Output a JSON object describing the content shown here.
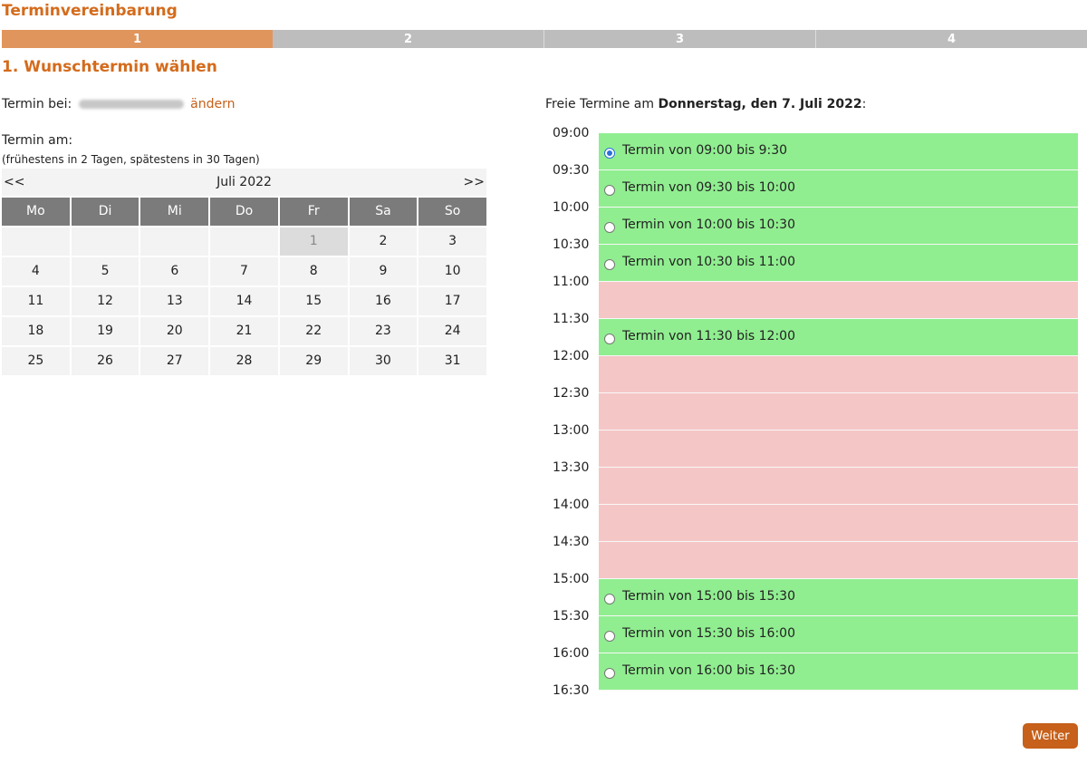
{
  "page": {
    "title": "Terminvereinbarung",
    "heading": "1. Wunschtermin wählen"
  },
  "steps": [
    {
      "label": "1",
      "active": true
    },
    {
      "label": "2"
    },
    {
      "label": "3"
    },
    {
      "label": "4"
    }
  ],
  "termin_bei": {
    "label": "Termin bei:",
    "change_link": "ändern"
  },
  "termin_am": {
    "label": "Termin am:",
    "hint": "(frühestens in 2 Tagen, spätestens in 30 Tagen)"
  },
  "calendar": {
    "prev": "<<",
    "next": ">>",
    "month": "Juli 2022",
    "weekdays": [
      "Mo",
      "Di",
      "Mi",
      "Do",
      "Fr",
      "Sa",
      "So"
    ],
    "leading_blanks": 4,
    "days": [
      "1",
      "2",
      "3",
      "4",
      "5",
      "6",
      "7",
      "8",
      "9",
      "10",
      "11",
      "12",
      "13",
      "14",
      "15",
      "16",
      "17",
      "18",
      "19",
      "20",
      "21",
      "22",
      "23",
      "24",
      "25",
      "26",
      "27",
      "28",
      "29",
      "30",
      "31"
    ],
    "selected_day": "1"
  },
  "schedule": {
    "title_prefix": "Freie Termine am ",
    "date": "Donnerstag, den 7. Juli 2022",
    "title_suffix": ":",
    "times": [
      "09:00",
      "09:30",
      "10:00",
      "10:30",
      "11:00",
      "11:30",
      "12:00",
      "12:30",
      "13:00",
      "13:30",
      "14:00",
      "14:30",
      "15:00",
      "15:30",
      "16:00",
      "16:30"
    ],
    "slots": [
      {
        "status": "free",
        "label": "Termin von 09:00 bis 9:30",
        "checked": true
      },
      {
        "status": "free",
        "label": "Termin von 09:30 bis 10:00"
      },
      {
        "status": "free",
        "label": "Termin von 10:00 bis 10:30"
      },
      {
        "status": "free",
        "label": "Termin von 10:30 bis 11:00"
      },
      {
        "status": "taken"
      },
      {
        "status": "free",
        "label": "Termin von 11:30 bis 12:00"
      },
      {
        "status": "taken"
      },
      {
        "status": "taken"
      },
      {
        "status": "taken"
      },
      {
        "status": "taken"
      },
      {
        "status": "taken"
      },
      {
        "status": "taken"
      },
      {
        "status": "free",
        "label": "Termin von 15:00 bis 15:30"
      },
      {
        "status": "free",
        "label": "Termin von 15:30 bis 16:00"
      },
      {
        "status": "free",
        "label": "Termin von 16:00 bis 16:30"
      }
    ]
  },
  "colors": {
    "accent": "#d46b1c",
    "free": "#90ee90",
    "taken": "#f5c6c6",
    "active_step": "#e0955c"
  },
  "buttons": {
    "next": "Weiter"
  }
}
